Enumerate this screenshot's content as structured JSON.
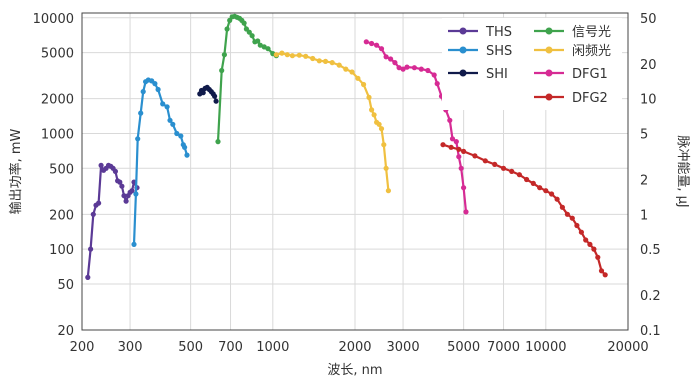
{
  "chart_data": {
    "type": "line",
    "xlabel": "波长, nm",
    "ylabel": "输出功率, mW",
    "y2label": "脉冲能量, µJ",
    "x_scale": "log",
    "y_scale": "log",
    "xlim": [
      200,
      20000
    ],
    "ylim": [
      20,
      11000
    ],
    "y2lim": [
      0.1,
      55
    ],
    "grid": true,
    "legend_position": "top-right",
    "x_ticks": [
      {
        "value": 200,
        "label": "200"
      },
      {
        "value": 300,
        "label": "300"
      },
      {
        "value": 500,
        "label": "500"
      },
      {
        "value": 700,
        "label": "700"
      },
      {
        "value": 1000,
        "label": "1000"
      },
      {
        "value": 2000,
        "label": "2000"
      },
      {
        "value": 3000,
        "label": "3000"
      },
      {
        "value": 5000,
        "label": "5000"
      },
      {
        "value": 7000,
        "label": "7000"
      },
      {
        "value": 10000,
        "label": "10000"
      },
      {
        "value": 20000,
        "label": "20000"
      }
    ],
    "y_ticks": [
      {
        "value": 20,
        "label": "20"
      },
      {
        "value": 50,
        "label": "50"
      },
      {
        "value": 100,
        "label": "100"
      },
      {
        "value": 200,
        "label": "200"
      },
      {
        "value": 500,
        "label": "500"
      },
      {
        "value": 1000,
        "label": "1000"
      },
      {
        "value": 2000,
        "label": "2000"
      },
      {
        "value": 5000,
        "label": "5000"
      },
      {
        "value": 10000,
        "label": "10000"
      }
    ],
    "y2_ticks": [
      {
        "value": 0.1,
        "label": "0.1"
      },
      {
        "value": 0.2,
        "label": "0.2"
      },
      {
        "value": 0.5,
        "label": "0.5"
      },
      {
        "value": 1,
        "label": "1"
      },
      {
        "value": 2,
        "label": "2"
      },
      {
        "value": 5,
        "label": "5"
      },
      {
        "value": 10,
        "label": "10"
      },
      {
        "value": 20,
        "label": "20"
      },
      {
        "value": 50,
        "label": "50"
      }
    ],
    "series": [
      {
        "name": "THS",
        "color": "#5b3a96",
        "points": [
          [
            210,
            57
          ],
          [
            215,
            100
          ],
          [
            220,
            200
          ],
          [
            225,
            240
          ],
          [
            230,
            250
          ],
          [
            235,
            530
          ],
          [
            240,
            480
          ],
          [
            245,
            500
          ],
          [
            250,
            530
          ],
          [
            255,
            520
          ],
          [
            260,
            500
          ],
          [
            265,
            470
          ],
          [
            270,
            390
          ],
          [
            275,
            380
          ],
          [
            280,
            350
          ],
          [
            285,
            290
          ],
          [
            290,
            260
          ],
          [
            295,
            290
          ],
          [
            300,
            310
          ],
          [
            305,
            320
          ],
          [
            310,
            380
          ],
          [
            318,
            340
          ]
        ]
      },
      {
        "name": "SHS",
        "color": "#2a8fcf",
        "points": [
          [
            310,
            110
          ],
          [
            315,
            300
          ],
          [
            320,
            900
          ],
          [
            328,
            1500
          ],
          [
            335,
            2300
          ],
          [
            342,
            2800
          ],
          [
            350,
            2900
          ],
          [
            360,
            2850
          ],
          [
            370,
            2700
          ],
          [
            380,
            2400
          ],
          [
            395,
            1800
          ],
          [
            410,
            1700
          ],
          [
            420,
            1300
          ],
          [
            430,
            1200
          ],
          [
            445,
            1000
          ],
          [
            460,
            950
          ],
          [
            470,
            800
          ],
          [
            475,
            760
          ],
          [
            485,
            650
          ]
        ]
      },
      {
        "name": "SHI",
        "color": "#101a4a",
        "points": [
          [
            540,
            2200
          ],
          [
            548,
            2350
          ],
          [
            556,
            2250
          ],
          [
            565,
            2450
          ],
          [
            575,
            2500
          ],
          [
            585,
            2400
          ],
          [
            595,
            2300
          ],
          [
            605,
            2200
          ],
          [
            612,
            2100
          ],
          [
            620,
            1900
          ]
        ]
      },
      {
        "name": "信号光",
        "color": "#3fa34d",
        "points": [
          [
            630,
            850
          ],
          [
            650,
            3500
          ],
          [
            665,
            4800
          ],
          [
            680,
            8000
          ],
          [
            695,
            9500
          ],
          [
            710,
            10200
          ],
          [
            725,
            10300
          ],
          [
            740,
            10100
          ],
          [
            755,
            9900
          ],
          [
            770,
            9500
          ],
          [
            785,
            9000
          ],
          [
            800,
            8000
          ],
          [
            820,
            7500
          ],
          [
            840,
            7000
          ],
          [
            860,
            6200
          ],
          [
            880,
            6300
          ],
          [
            900,
            5800
          ],
          [
            930,
            5600
          ],
          [
            960,
            5400
          ],
          [
            1000,
            4900
          ],
          [
            1030,
            4700
          ]
        ]
      },
      {
        "name": "闲频光",
        "color": "#f0c040",
        "points": [
          [
            1030,
            4800
          ],
          [
            1080,
            4950
          ],
          [
            1130,
            4800
          ],
          [
            1180,
            4700
          ],
          [
            1250,
            4750
          ],
          [
            1320,
            4650
          ],
          [
            1400,
            4450
          ],
          [
            1480,
            4250
          ],
          [
            1560,
            4200
          ],
          [
            1650,
            4100
          ],
          [
            1750,
            3900
          ],
          [
            1850,
            3600
          ],
          [
            1950,
            3400
          ],
          [
            2050,
            3000
          ],
          [
            2150,
            2650
          ],
          [
            2250,
            2050
          ],
          [
            2300,
            1600
          ],
          [
            2350,
            1450
          ],
          [
            2400,
            1250
          ],
          [
            2450,
            1200
          ],
          [
            2500,
            1100
          ],
          [
            2550,
            800
          ],
          [
            2600,
            500
          ],
          [
            2650,
            320
          ]
        ]
      },
      {
        "name": "DFG1",
        "color": "#d62b94",
        "points": [
          [
            2200,
            6200
          ],
          [
            2300,
            6000
          ],
          [
            2400,
            5800
          ],
          [
            2500,
            5400
          ],
          [
            2600,
            4600
          ],
          [
            2700,
            4400
          ],
          [
            2800,
            4100
          ],
          [
            2900,
            3700
          ],
          [
            3000,
            3600
          ],
          [
            3100,
            3750
          ],
          [
            3300,
            3700
          ],
          [
            3500,
            3600
          ],
          [
            3700,
            3500
          ],
          [
            3900,
            3200
          ],
          [
            4000,
            2700
          ],
          [
            4150,
            2100
          ],
          [
            4300,
            1600
          ],
          [
            4450,
            1300
          ],
          [
            4550,
            900
          ],
          [
            4700,
            850
          ],
          [
            4800,
            630
          ],
          [
            4900,
            500
          ],
          [
            5000,
            340
          ],
          [
            5100,
            210
          ]
        ]
      },
      {
        "name": "DFG2",
        "color": "#c42828",
        "points": [
          [
            4200,
            800
          ],
          [
            4500,
            760
          ],
          [
            4800,
            730
          ],
          [
            5000,
            700
          ],
          [
            5500,
            640
          ],
          [
            6000,
            580
          ],
          [
            6500,
            540
          ],
          [
            7000,
            500
          ],
          [
            7500,
            470
          ],
          [
            8000,
            440
          ],
          [
            8500,
            400
          ],
          [
            9000,
            370
          ],
          [
            9500,
            340
          ],
          [
            10000,
            320
          ],
          [
            10500,
            300
          ],
          [
            11000,
            270
          ],
          [
            11500,
            230
          ],
          [
            12000,
            200
          ],
          [
            12500,
            185
          ],
          [
            13000,
            160
          ],
          [
            13500,
            140
          ],
          [
            14000,
            120
          ],
          [
            14500,
            110
          ],
          [
            15000,
            100
          ],
          [
            15500,
            85
          ],
          [
            16000,
            65
          ],
          [
            16500,
            60
          ]
        ]
      }
    ]
  }
}
